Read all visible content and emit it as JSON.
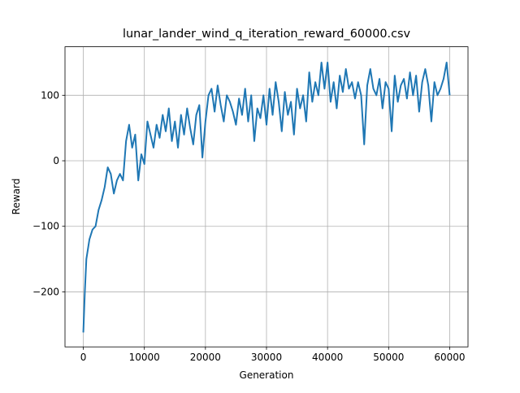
{
  "chart_data": {
    "type": "line",
    "title": "lunar_lander_wind_q_iteration_reward_60000.csv",
    "xlabel": "Generation",
    "ylabel": "Reward",
    "x": [
      0,
      250,
      500,
      1000,
      1500,
      2000,
      2500,
      3000,
      3500,
      4000,
      4500,
      5000,
      5500,
      6000,
      6500,
      7000,
      7500,
      8000,
      8500,
      9000,
      9500,
      10000,
      10500,
      11000,
      11500,
      12000,
      12500,
      13000,
      13500,
      14000,
      14500,
      15000,
      15500,
      16000,
      16500,
      17000,
      17500,
      18000,
      18500,
      19000,
      19500,
      20000,
      20500,
      21000,
      21500,
      22000,
      22500,
      23000,
      23500,
      24000,
      24500,
      25000,
      25500,
      26000,
      26500,
      27000,
      27500,
      28000,
      28500,
      29000,
      29500,
      30000,
      30500,
      31000,
      31500,
      32000,
      32500,
      33000,
      33500,
      34000,
      34500,
      35000,
      35500,
      36000,
      36500,
      37000,
      37500,
      38000,
      38500,
      39000,
      39500,
      40000,
      40500,
      41000,
      41500,
      42000,
      42500,
      43000,
      43500,
      44000,
      44500,
      45000,
      45500,
      46000,
      46500,
      47000,
      47500,
      48000,
      48500,
      49000,
      49500,
      50000,
      50500,
      51000,
      51500,
      52000,
      52500,
      53000,
      53500,
      54000,
      54500,
      55000,
      55500,
      56000,
      56500,
      57000,
      57500,
      58000,
      58500,
      59000,
      59500,
      60000
    ],
    "series": [
      {
        "name": "Reward",
        "color": "#1f77b4",
        "values": [
          -262,
          -200,
          -150,
          -120,
          -105,
          -100,
          -75,
          -60,
          -40,
          -10,
          -20,
          -50,
          -30,
          -20,
          -30,
          30,
          55,
          20,
          40,
          -30,
          10,
          -5,
          60,
          40,
          20,
          55,
          35,
          70,
          45,
          80,
          30,
          60,
          20,
          70,
          40,
          80,
          50,
          25,
          70,
          85,
          5,
          60,
          100,
          110,
          75,
          115,
          85,
          60,
          100,
          90,
          75,
          55,
          95,
          70,
          110,
          60,
          100,
          30,
          80,
          65,
          100,
          55,
          110,
          70,
          120,
          90,
          45,
          105,
          70,
          90,
          40,
          110,
          80,
          100,
          60,
          135,
          90,
          120,
          100,
          150,
          110,
          150,
          90,
          120,
          80,
          130,
          105,
          140,
          110,
          120,
          95,
          120,
          100,
          25,
          115,
          140,
          110,
          100,
          125,
          80,
          120,
          110,
          45,
          130,
          90,
          115,
          125,
          95,
          135,
          100,
          130,
          75,
          120,
          140,
          115,
          60,
          120,
          100,
          110,
          125,
          150,
          100
        ]
      }
    ],
    "xlim": [
      -3000,
      63000
    ],
    "ylim": [
      -284,
      174
    ],
    "xticks": [
      0,
      10000,
      20000,
      30000,
      40000,
      50000,
      60000
    ],
    "yticks": [
      {
        "value": -200,
        "label": "−200"
      },
      {
        "value": -100,
        "label": "−100"
      },
      0,
      100
    ],
    "grid": true
  }
}
